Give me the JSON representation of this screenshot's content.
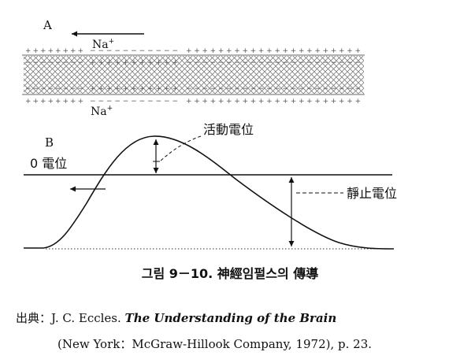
{
  "panel_a": {
    "label": "A",
    "ion_label": {
      "base": "Na",
      "charge": "+"
    },
    "charges": {
      "outside": {
        "left": "+ + + + + + + +",
        "middle": "− − − − − − − − − − −",
        "right": "+ + + + + + + + + + + + + + + + + + + + + +"
      },
      "inside": {
        "left": "− − − − − − − −",
        "middle": "+ + + + + + + + + + +",
        "right": "− − − − − − − − − − − − − − − − − − − − − −"
      }
    }
  },
  "panel_b": {
    "label": "B",
    "action_potential_label": "活動電位",
    "zero_potential_label": "0 電位",
    "resting_potential_label": "靜止電位"
  },
  "caption": "그림 9－10. 神經임펄스의 傳導",
  "source": {
    "prefix": "出典：J. C. Eccles.",
    "title": "The Understanding of the Brain",
    "publication": "(New York：McGraw-Hillook Company, 1972), p. 23."
  }
}
